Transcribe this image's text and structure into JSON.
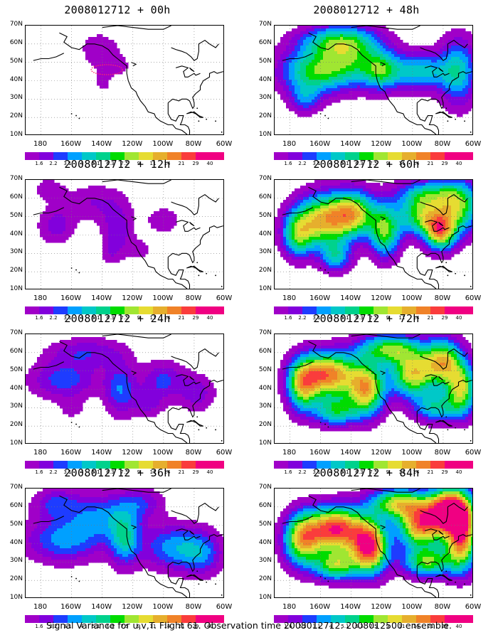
{
  "chart_data": {
    "type": "heatmap",
    "panels": [
      {
        "title": "2008012712 + 00h",
        "intensity": 0.18,
        "blobs": [
          [
            -137,
            52,
            14,
            14,
            0.9
          ],
          [
            -145,
            58,
            10,
            8,
            0.7
          ],
          [
            -175,
            45,
            5,
            5,
            0.6
          ],
          [
            -140,
            38,
            5,
            5,
            0.6
          ],
          [
            -128,
            48,
            6,
            5,
            0.5
          ],
          [
            -160,
            67,
            8,
            4,
            0.4
          ]
        ]
      },
      {
        "title": "2008012712 + 12h",
        "intensity": 0.35,
        "blobs": [
          [
            -170,
            45,
            12,
            10,
            0.9
          ],
          [
            -130,
            42,
            10,
            14,
            1.0
          ],
          [
            -145,
            58,
            20,
            10,
            0.7
          ],
          [
            -100,
            48,
            12,
            8,
            0.6
          ],
          [
            -175,
            65,
            10,
            6,
            0.6
          ],
          [
            -115,
            32,
            8,
            6,
            0.5
          ],
          [
            -135,
            30,
            6,
            6,
            0.4
          ]
        ]
      },
      {
        "title": "2008012712 + 24h",
        "intensity": 0.45,
        "blobs": [
          [
            -165,
            45,
            22,
            10,
            1.0
          ],
          [
            -128,
            40,
            10,
            14,
            1.1
          ],
          [
            -100,
            45,
            14,
            10,
            0.9
          ],
          [
            -150,
            60,
            25,
            8,
            0.8
          ],
          [
            -78,
            38,
            12,
            10,
            0.7
          ],
          [
            -110,
            32,
            10,
            8,
            0.6
          ],
          [
            -160,
            30,
            8,
            6,
            0.4
          ]
        ]
      },
      {
        "title": "2008012712 + 36h",
        "intensity": 0.55,
        "blobs": [
          [
            -165,
            42,
            25,
            12,
            1.0
          ],
          [
            -125,
            42,
            10,
            14,
            1.2
          ],
          [
            -95,
            38,
            18,
            12,
            1.0
          ],
          [
            -140,
            55,
            22,
            12,
            0.9
          ],
          [
            -75,
            35,
            14,
            12,
            0.9
          ],
          [
            -170,
            62,
            15,
            8,
            0.7
          ],
          [
            -115,
            62,
            15,
            8,
            0.6
          ]
        ]
      },
      {
        "title": "2008012712 + 48h",
        "intensity": 0.7,
        "blobs": [
          [
            -165,
            45,
            22,
            12,
            1.2
          ],
          [
            -140,
            52,
            22,
            14,
            1.1
          ],
          [
            -120,
            45,
            12,
            10,
            1.0
          ],
          [
            -95,
            45,
            18,
            10,
            1.0
          ],
          [
            -70,
            45,
            12,
            18,
            1.0
          ],
          [
            -170,
            30,
            10,
            8,
            0.6
          ],
          [
            -150,
            62,
            25,
            8,
            0.9
          ]
        ]
      },
      {
        "title": "2008012712 + 60h",
        "intensity": 0.9,
        "blobs": [
          [
            -158,
            48,
            18,
            14,
            1.4
          ],
          [
            -138,
            52,
            14,
            12,
            1.2
          ],
          [
            -118,
            42,
            10,
            14,
            1.1
          ],
          [
            -82,
            42,
            10,
            10,
            1.4
          ],
          [
            -95,
            50,
            14,
            10,
            1.0
          ],
          [
            -70,
            55,
            14,
            14,
            1.1
          ],
          [
            -175,
            40,
            10,
            12,
            0.9
          ],
          [
            -150,
            28,
            10,
            8,
            0.7
          ],
          [
            -90,
            62,
            20,
            8,
            0.8
          ]
        ]
      },
      {
        "title": "2008012712 + 72h",
        "intensity": 1.0,
        "blobs": [
          [
            -155,
            48,
            18,
            12,
            1.5
          ],
          [
            -130,
            40,
            12,
            14,
            1.3
          ],
          [
            -100,
            48,
            14,
            12,
            1.2
          ],
          [
            -80,
            55,
            12,
            12,
            1.2
          ],
          [
            -68,
            40,
            10,
            14,
            1.1
          ],
          [
            -172,
            42,
            10,
            14,
            1.0
          ],
          [
            -115,
            62,
            20,
            8,
            1.0
          ],
          [
            -150,
            28,
            14,
            8,
            0.8
          ],
          [
            -85,
            30,
            14,
            8,
            0.7
          ]
        ]
      },
      {
        "title": "2008012712 + 84h",
        "intensity": 1.1,
        "blobs": [
          [
            -150,
            48,
            18,
            12,
            1.5
          ],
          [
            -128,
            38,
            12,
            14,
            1.5
          ],
          [
            -75,
            58,
            14,
            12,
            1.8
          ],
          [
            -95,
            50,
            14,
            12,
            1.3
          ],
          [
            -68,
            42,
            10,
            16,
            1.3
          ],
          [
            -172,
            42,
            12,
            14,
            1.1
          ],
          [
            -110,
            62,
            18,
            8,
            1.0
          ],
          [
            -150,
            28,
            14,
            8,
            0.9
          ],
          [
            -90,
            30,
            16,
            8,
            0.9
          ]
        ]
      }
    ],
    "yticks": [
      "70N",
      "60N",
      "50N",
      "40N",
      "30N",
      "20N",
      "10N"
    ],
    "xticks": [
      "180",
      "160W",
      "140W",
      "120W",
      "100W",
      "80W",
      "60W"
    ],
    "xlim": [
      -190,
      -60
    ],
    "ylim": [
      10,
      70
    ],
    "levels": [
      "1.6",
      "2.2",
      "3.1",
      "4",
      "5.1",
      "6.3",
      "7.5",
      "9",
      "11",
      "14",
      "21",
      "29",
      "40"
    ],
    "colors": [
      "#a000c8",
      "#8200dc",
      "#1e3cff",
      "#00a0ff",
      "#00c8c8",
      "#00d28c",
      "#00dc00",
      "#a0e632",
      "#e6dc32",
      "#e6af2d",
      "#f08228",
      "#fa3c3c",
      "#f00082"
    ]
  },
  "caption": "Signal Variance for u,v,T. Flight 61. Observation time 2008012712. 2008012500 ensemble."
}
